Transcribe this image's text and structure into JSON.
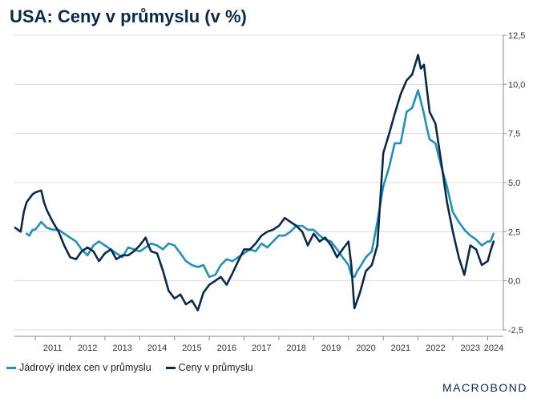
{
  "chart_data": {
    "type": "line",
    "title": "USA: Ceny v průmyslu (v %)",
    "ylim": [
      -2.5,
      12.5
    ],
    "yticks": [
      -2.5,
      0,
      2.5,
      5,
      7.5,
      10,
      12.5
    ],
    "ytick_labels": [
      "-2,5",
      "0,0",
      "2,5",
      "5,0",
      "7,5",
      "10,0",
      "12,5"
    ],
    "xlim": [
      2010.4,
      2024.45
    ],
    "year_labels": [
      "2011",
      "2012",
      "2013",
      "2014",
      "2015",
      "2016",
      "2017",
      "2018",
      "2019",
      "2020",
      "2021",
      "2022",
      "2023",
      "2024"
    ],
    "grid": true,
    "legend_position": "bottom-left",
    "series": [
      {
        "name": "Jádrový index cen v průmyslu",
        "color": "#2390b8",
        "x": [
          2010.75,
          2010.83,
          2010.92,
          2011.0,
          2011.17,
          2011.33,
          2011.5,
          2011.67,
          2011.83,
          2012.0,
          2012.17,
          2012.33,
          2012.5,
          2012.67,
          2012.83,
          2013.0,
          2013.17,
          2013.33,
          2013.5,
          2013.67,
          2013.83,
          2014.0,
          2014.17,
          2014.33,
          2014.5,
          2014.67,
          2014.83,
          2015.0,
          2015.17,
          2015.33,
          2015.5,
          2015.67,
          2015.83,
          2016.0,
          2016.17,
          2016.33,
          2016.5,
          2016.67,
          2016.83,
          2017.0,
          2017.17,
          2017.33,
          2017.5,
          2017.67,
          2017.83,
          2018.0,
          2018.17,
          2018.33,
          2018.5,
          2018.67,
          2018.83,
          2019.0,
          2019.17,
          2019.33,
          2019.5,
          2019.67,
          2019.83,
          2020.0,
          2020.08,
          2020.17,
          2020.25,
          2020.33,
          2020.5,
          2020.67,
          2020.83,
          2021.0,
          2021.17,
          2021.33,
          2021.5,
          2021.67,
          2021.83,
          2022.0,
          2022.17,
          2022.25,
          2022.33,
          2022.5,
          2022.67,
          2022.83,
          2023.0,
          2023.17,
          2023.33,
          2023.5,
          2023.67,
          2023.83,
          2024.0,
          2024.08,
          2024.17
        ],
        "values": [
          2.4,
          2.3,
          2.6,
          2.6,
          3.0,
          2.7,
          2.6,
          2.6,
          2.4,
          2.2,
          2.0,
          1.6,
          1.3,
          1.8,
          2.0,
          1.8,
          1.6,
          1.4,
          1.2,
          1.7,
          1.6,
          1.5,
          1.7,
          1.9,
          1.8,
          1.6,
          1.9,
          1.8,
          1.4,
          1.0,
          0.8,
          0.7,
          0.8,
          0.2,
          0.3,
          0.8,
          1.1,
          1.0,
          1.2,
          1.4,
          1.6,
          1.5,
          1.9,
          1.7,
          2.0,
          2.3,
          2.3,
          2.5,
          2.8,
          2.8,
          2.6,
          2.6,
          2.3,
          2.1,
          2.0,
          1.6,
          1.2,
          0.8,
          0.3,
          0.2,
          0.5,
          0.7,
          1.2,
          1.5,
          3.0,
          4.8,
          5.8,
          7.0,
          7.0,
          8.6,
          8.8,
          9.7,
          8.5,
          7.8,
          7.2,
          7.0,
          5.8,
          4.8,
          3.5,
          3.0,
          2.6,
          2.3,
          2.1,
          1.8,
          2.0,
          2.0,
          2.4
        ]
      },
      {
        "name": "Ceny v průmyslu",
        "color": "#0b2a4a",
        "x": [
          2010.42,
          2010.58,
          2010.67,
          2010.75,
          2010.92,
          2011.0,
          2011.17,
          2011.25,
          2011.33,
          2011.5,
          2011.67,
          2011.83,
          2012.0,
          2012.17,
          2012.33,
          2012.5,
          2012.67,
          2012.83,
          2013.0,
          2013.17,
          2013.33,
          2013.5,
          2013.67,
          2013.83,
          2014.0,
          2014.17,
          2014.25,
          2014.33,
          2014.5,
          2014.67,
          2014.83,
          2015.0,
          2015.17,
          2015.33,
          2015.5,
          2015.67,
          2015.83,
          2016.0,
          2016.17,
          2016.33,
          2016.5,
          2016.67,
          2016.83,
          2017.0,
          2017.17,
          2017.33,
          2017.5,
          2017.67,
          2017.83,
          2018.0,
          2018.17,
          2018.33,
          2018.5,
          2018.67,
          2018.83,
          2019.0,
          2019.17,
          2019.33,
          2019.5,
          2019.67,
          2019.83,
          2020.0,
          2020.08,
          2020.17,
          2020.33,
          2020.5,
          2020.67,
          2020.83,
          2021.0,
          2021.17,
          2021.33,
          2021.5,
          2021.67,
          2021.83,
          2022.0,
          2022.08,
          2022.17,
          2022.33,
          2022.5,
          2022.67,
          2022.83,
          2023.0,
          2023.17,
          2023.33,
          2023.5,
          2023.67,
          2023.83,
          2024.0,
          2024.08,
          2024.17
        ],
        "values": [
          2.7,
          2.5,
          3.5,
          4.0,
          4.4,
          4.5,
          4.6,
          4.0,
          3.6,
          3.0,
          2.5,
          1.8,
          1.2,
          1.1,
          1.5,
          1.7,
          1.5,
          1.0,
          1.4,
          1.6,
          1.1,
          1.3,
          1.3,
          1.5,
          1.8,
          2.2,
          1.8,
          1.5,
          1.4,
          0.5,
          -0.5,
          -0.9,
          -0.7,
          -1.2,
          -1.0,
          -1.5,
          -0.6,
          -0.2,
          0.0,
          0.2,
          -0.2,
          0.4,
          1.0,
          1.6,
          1.6,
          1.9,
          2.3,
          2.5,
          2.6,
          2.8,
          3.2,
          3.0,
          2.8,
          2.5,
          1.8,
          2.4,
          2.0,
          2.2,
          1.8,
          1.2,
          1.6,
          2.0,
          0.8,
          -1.4,
          -0.6,
          0.5,
          0.8,
          1.8,
          6.5,
          7.5,
          8.5,
          9.5,
          10.2,
          10.5,
          11.5,
          10.8,
          11.0,
          8.6,
          8.0,
          6.0,
          4.0,
          2.5,
          1.2,
          0.3,
          1.8,
          1.6,
          0.8,
          1.0,
          1.5,
          2.0
        ]
      }
    ]
  },
  "legend": {
    "items": [
      {
        "label": "Jádrový index cen v průmyslu",
        "color": "#2390b8"
      },
      {
        "label": "Ceny v průmyslu",
        "color": "#0b2a4a"
      }
    ]
  },
  "brand": "MACROBOND"
}
